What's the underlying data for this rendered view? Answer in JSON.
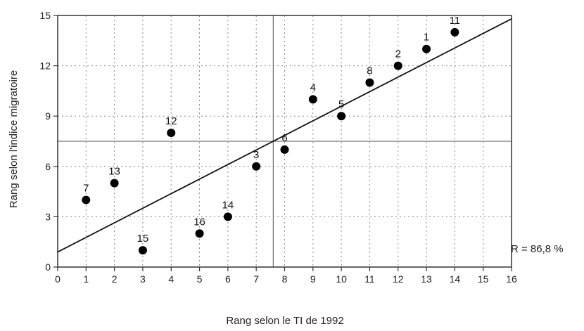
{
  "chart_data": {
    "type": "scatter",
    "title": "",
    "xlabel": "Rang selon le TI de 1992",
    "ylabel": "Rang selon l'indice migratoire",
    "xlim": [
      0,
      16
    ],
    "ylim": [
      0,
      15
    ],
    "x_ticks": [
      0,
      1,
      2,
      3,
      4,
      5,
      6,
      7,
      8,
      9,
      10,
      11,
      12,
      13,
      14,
      15,
      16
    ],
    "y_ticks": [
      0,
      3,
      6,
      9,
      12,
      15
    ],
    "grid": true,
    "points": [
      {
        "label": "7",
        "x": 1,
        "y": 4
      },
      {
        "label": "13",
        "x": 2,
        "y": 5
      },
      {
        "label": "15",
        "x": 3,
        "y": 1
      },
      {
        "label": "12",
        "x": 4,
        "y": 8
      },
      {
        "label": "16",
        "x": 5,
        "y": 2
      },
      {
        "label": "14",
        "x": 6,
        "y": 3
      },
      {
        "label": "3",
        "x": 7,
        "y": 6
      },
      {
        "label": "6",
        "x": 8,
        "y": 7
      },
      {
        "label": "4",
        "x": 9,
        "y": 10
      },
      {
        "label": "5",
        "x": 10,
        "y": 9
      },
      {
        "label": "8",
        "x": 11,
        "y": 11
      },
      {
        "label": "2",
        "x": 12,
        "y": 12
      },
      {
        "label": "1",
        "x": 13,
        "y": 13
      },
      {
        "label": "11",
        "x": 14,
        "y": 14
      }
    ],
    "regression_line": {
      "x0": 0,
      "y0": 0.9,
      "x1": 16,
      "y1": 14.8
    },
    "mean_lines": {
      "x": 7.6,
      "y": 7.5
    },
    "annotation": "R = 86,8 %"
  }
}
